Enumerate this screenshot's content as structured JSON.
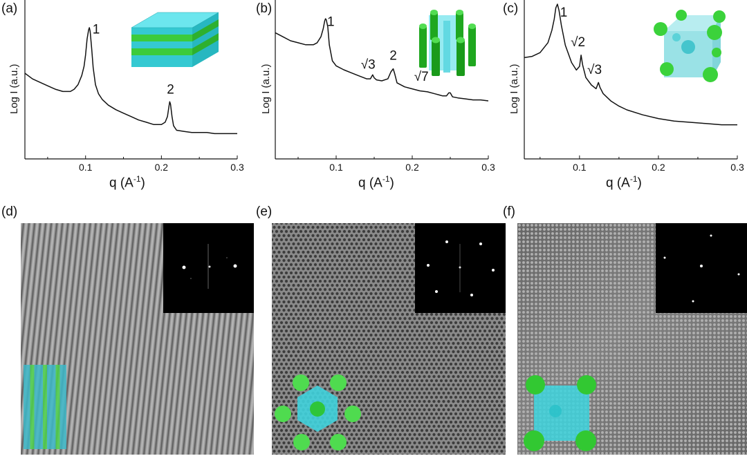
{
  "panel_labels": {
    "a": "(a)",
    "b": "(b)",
    "c": "(c)",
    "d": "(d)",
    "e": "(e)",
    "f": "(f)"
  },
  "chart_data": [
    {
      "type": "line",
      "panel": "(a)",
      "xlabel": "q (A-1)",
      "xlabel_base": "q (A",
      "xlabel_sup": "-1",
      "xlabel_end": ")",
      "ylabel": "Log I (a.u.)",
      "xlim": [
        0.02,
        0.3
      ],
      "ylim": [
        0,
        1
      ],
      "x_ticks": [
        0.1,
        0.2,
        0.3
      ],
      "x_tick_labels": [
        "0.1",
        "0.2",
        "0.3"
      ],
      "grid": false,
      "series": [
        {
          "x": [
            0.02,
            0.03,
            0.04,
            0.05,
            0.06,
            0.07,
            0.08,
            0.085,
            0.09,
            0.095,
            0.098,
            0.1,
            0.102,
            0.104,
            0.105,
            0.106,
            0.108,
            0.11,
            0.113,
            0.117,
            0.122,
            0.13,
            0.14,
            0.15,
            0.16,
            0.17,
            0.18,
            0.19,
            0.2,
            0.205,
            0.208,
            0.21,
            0.211,
            0.212,
            0.214,
            0.216,
            0.22,
            0.23,
            0.24,
            0.25,
            0.26,
            0.27,
            0.28,
            0.29,
            0.3
          ],
          "y": [
            0.6,
            0.55,
            0.52,
            0.49,
            0.46,
            0.44,
            0.44,
            0.46,
            0.5,
            0.58,
            0.66,
            0.76,
            0.9,
            0.98,
            1.0,
            0.97,
            0.82,
            0.65,
            0.5,
            0.42,
            0.37,
            0.32,
            0.28,
            0.25,
            0.22,
            0.19,
            0.17,
            0.15,
            0.15,
            0.17,
            0.22,
            0.31,
            0.35,
            0.33,
            0.22,
            0.14,
            0.1,
            0.09,
            0.08,
            0.08,
            0.08,
            0.07,
            0.07,
            0.07,
            0.07
          ]
        }
      ],
      "annotations": [
        {
          "text": "1",
          "x": 0.114,
          "y": 0.95
        },
        {
          "text": "2",
          "x": 0.212,
          "y": 0.42
        }
      ]
    },
    {
      "type": "line",
      "panel": "(b)",
      "xlabel": "q (A-1)",
      "xlabel_base": "q (A",
      "xlabel_sup": "-1",
      "xlabel_end": ")",
      "ylabel": "Log I (a.u.)",
      "xlim": [
        0.02,
        0.3
      ],
      "ylim": [
        0,
        1
      ],
      "x_ticks": [
        0.1,
        0.2,
        0.3
      ],
      "x_tick_labels": [
        "0.1",
        "0.2",
        "0.3"
      ],
      "grid": false,
      "series": [
        {
          "x": [
            0.02,
            0.03,
            0.04,
            0.05,
            0.06,
            0.07,
            0.075,
            0.08,
            0.083,
            0.085,
            0.086,
            0.087,
            0.089,
            0.091,
            0.095,
            0.1,
            0.11,
            0.12,
            0.13,
            0.14,
            0.145,
            0.148,
            0.15,
            0.153,
            0.16,
            0.168,
            0.172,
            0.175,
            0.177,
            0.18,
            0.185,
            0.19,
            0.2,
            0.21,
            0.22,
            0.23,
            0.24,
            0.245,
            0.248,
            0.25,
            0.253,
            0.26,
            0.27,
            0.28,
            0.29,
            0.3
          ],
          "y": [
            0.88,
            0.84,
            0.8,
            0.78,
            0.76,
            0.76,
            0.78,
            0.84,
            0.92,
            1.0,
            1.02,
            1.01,
            0.94,
            0.76,
            0.6,
            0.55,
            0.51,
            0.48,
            0.45,
            0.42,
            0.42,
            0.46,
            0.43,
            0.41,
            0.4,
            0.42,
            0.49,
            0.52,
            0.47,
            0.38,
            0.36,
            0.34,
            0.32,
            0.3,
            0.29,
            0.27,
            0.25,
            0.25,
            0.28,
            0.28,
            0.24,
            0.23,
            0.22,
            0.21,
            0.21,
            0.2
          ]
        }
      ],
      "annotations": [
        {
          "text": "1",
          "x": 0.093,
          "y": 0.95
        },
        {
          "text": "√3",
          "x": 0.142,
          "y": 0.52
        },
        {
          "text": "2",
          "x": 0.175,
          "y": 0.61
        },
        {
          "text": "√7",
          "x": 0.212,
          "y": 0.4
        }
      ]
    },
    {
      "type": "line",
      "panel": "(c)",
      "xlabel": "q (A-1)",
      "xlabel_base": "q (A",
      "xlabel_sup": "-1",
      "xlabel_end": ")",
      "ylabel": "Log I (a.u.)",
      "xlim": [
        0.03,
        0.3
      ],
      "ylim": [
        0,
        1
      ],
      "x_ticks": [
        0.1,
        0.2,
        0.3
      ],
      "x_tick_labels": [
        "0.1",
        "0.2",
        "0.3"
      ],
      "grid": false,
      "series": [
        {
          "x": [
            0.03,
            0.04,
            0.05,
            0.06,
            0.065,
            0.068,
            0.07,
            0.072,
            0.074,
            0.077,
            0.082,
            0.09,
            0.096,
            0.1,
            0.102,
            0.104,
            0.108,
            0.115,
            0.121,
            0.124,
            0.126,
            0.13,
            0.14,
            0.15,
            0.16,
            0.18,
            0.2,
            0.22,
            0.24,
            0.26,
            0.28,
            0.3
          ],
          "y": [
            0.62,
            0.63,
            0.66,
            0.74,
            0.84,
            0.93,
            1.02,
            1.05,
            1.0,
            0.88,
            0.72,
            0.58,
            0.52,
            0.55,
            0.64,
            0.56,
            0.46,
            0.4,
            0.37,
            0.42,
            0.38,
            0.33,
            0.27,
            0.23,
            0.2,
            0.16,
            0.13,
            0.11,
            0.1,
            0.09,
            0.08,
            0.08
          ]
        }
      ],
      "annotations": [
        {
          "text": "1",
          "x": 0.08,
          "y": 0.95
        },
        {
          "text": "√2",
          "x": 0.098,
          "y": 0.71
        },
        {
          "text": "√3",
          "x": 0.119,
          "y": 0.49
        }
      ]
    }
  ],
  "colors": {
    "cyan": "#40d8e0",
    "green": "#3ccb3c",
    "curve": "#111111"
  },
  "icons": [
    "lamellar-block-icon",
    "hexagonal-cylinders-icon",
    "bcc-sphere-cube-icon",
    "hexagon-overlay-icon",
    "square-overlay-icon"
  ]
}
